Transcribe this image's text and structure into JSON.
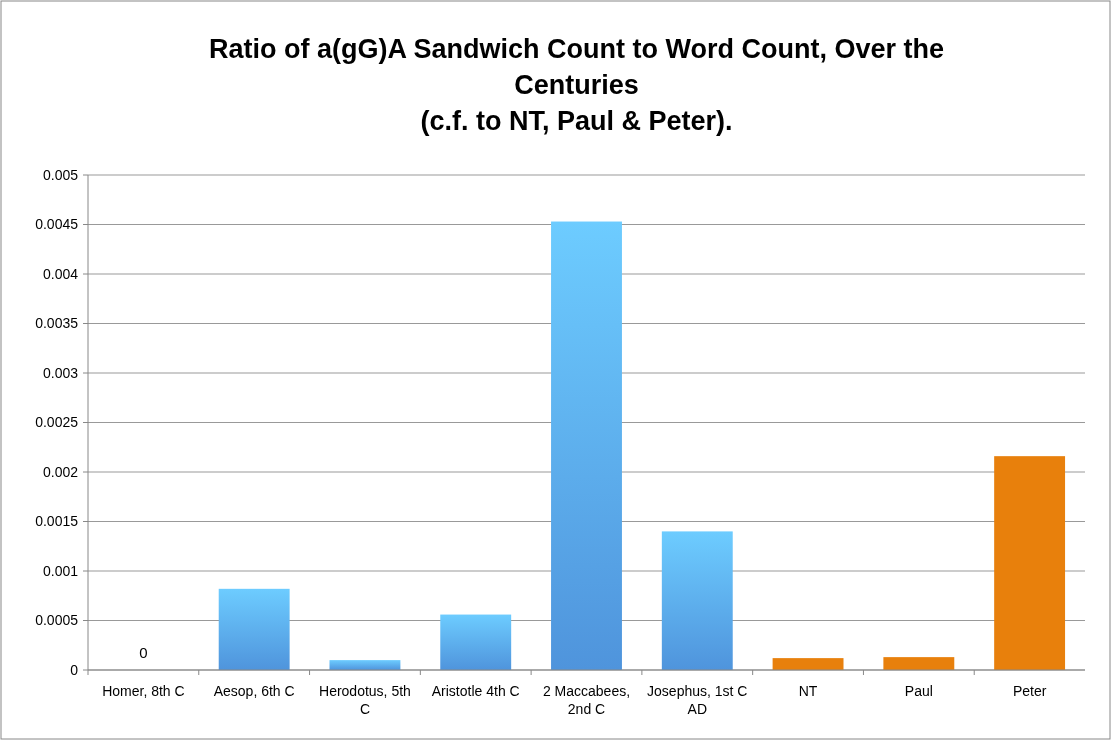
{
  "chart_data": {
    "type": "bar",
    "title": "Ratio of a(gG)A Sandwich Count to Word Count, Over the Centuries\n(c.f. to NT, Paul & Peter).",
    "categories": [
      "Homer, 8th C",
      "Aesop, 6th C",
      "Herodotus, 5th C",
      "Aristotle 4th C",
      "2 Maccabees, 2nd C",
      "Josephus, 1st C AD",
      "NT",
      "Paul",
      "Peter"
    ],
    "values": [
      0,
      0.00082,
      0.0001,
      0.00056,
      0.00453,
      0.0014,
      0.00012,
      0.00013,
      0.00216
    ],
    "colors": [
      "#4f94dc",
      "#4f94dc",
      "#4f94dc",
      "#4f94dc",
      "#4f94dc",
      "#4f94dc",
      "#e8800c",
      "#e8800c",
      "#e8800c"
    ],
    "value_labels": [
      "0",
      null,
      null,
      null,
      null,
      null,
      null,
      null,
      null
    ],
    "ylim": [
      0,
      0.005
    ],
    "yticks": [
      0,
      0.0005,
      0.001,
      0.0015,
      0.002,
      0.0025,
      0.003,
      0.0035,
      0.004,
      0.0045,
      0.005
    ],
    "grid": "y"
  }
}
